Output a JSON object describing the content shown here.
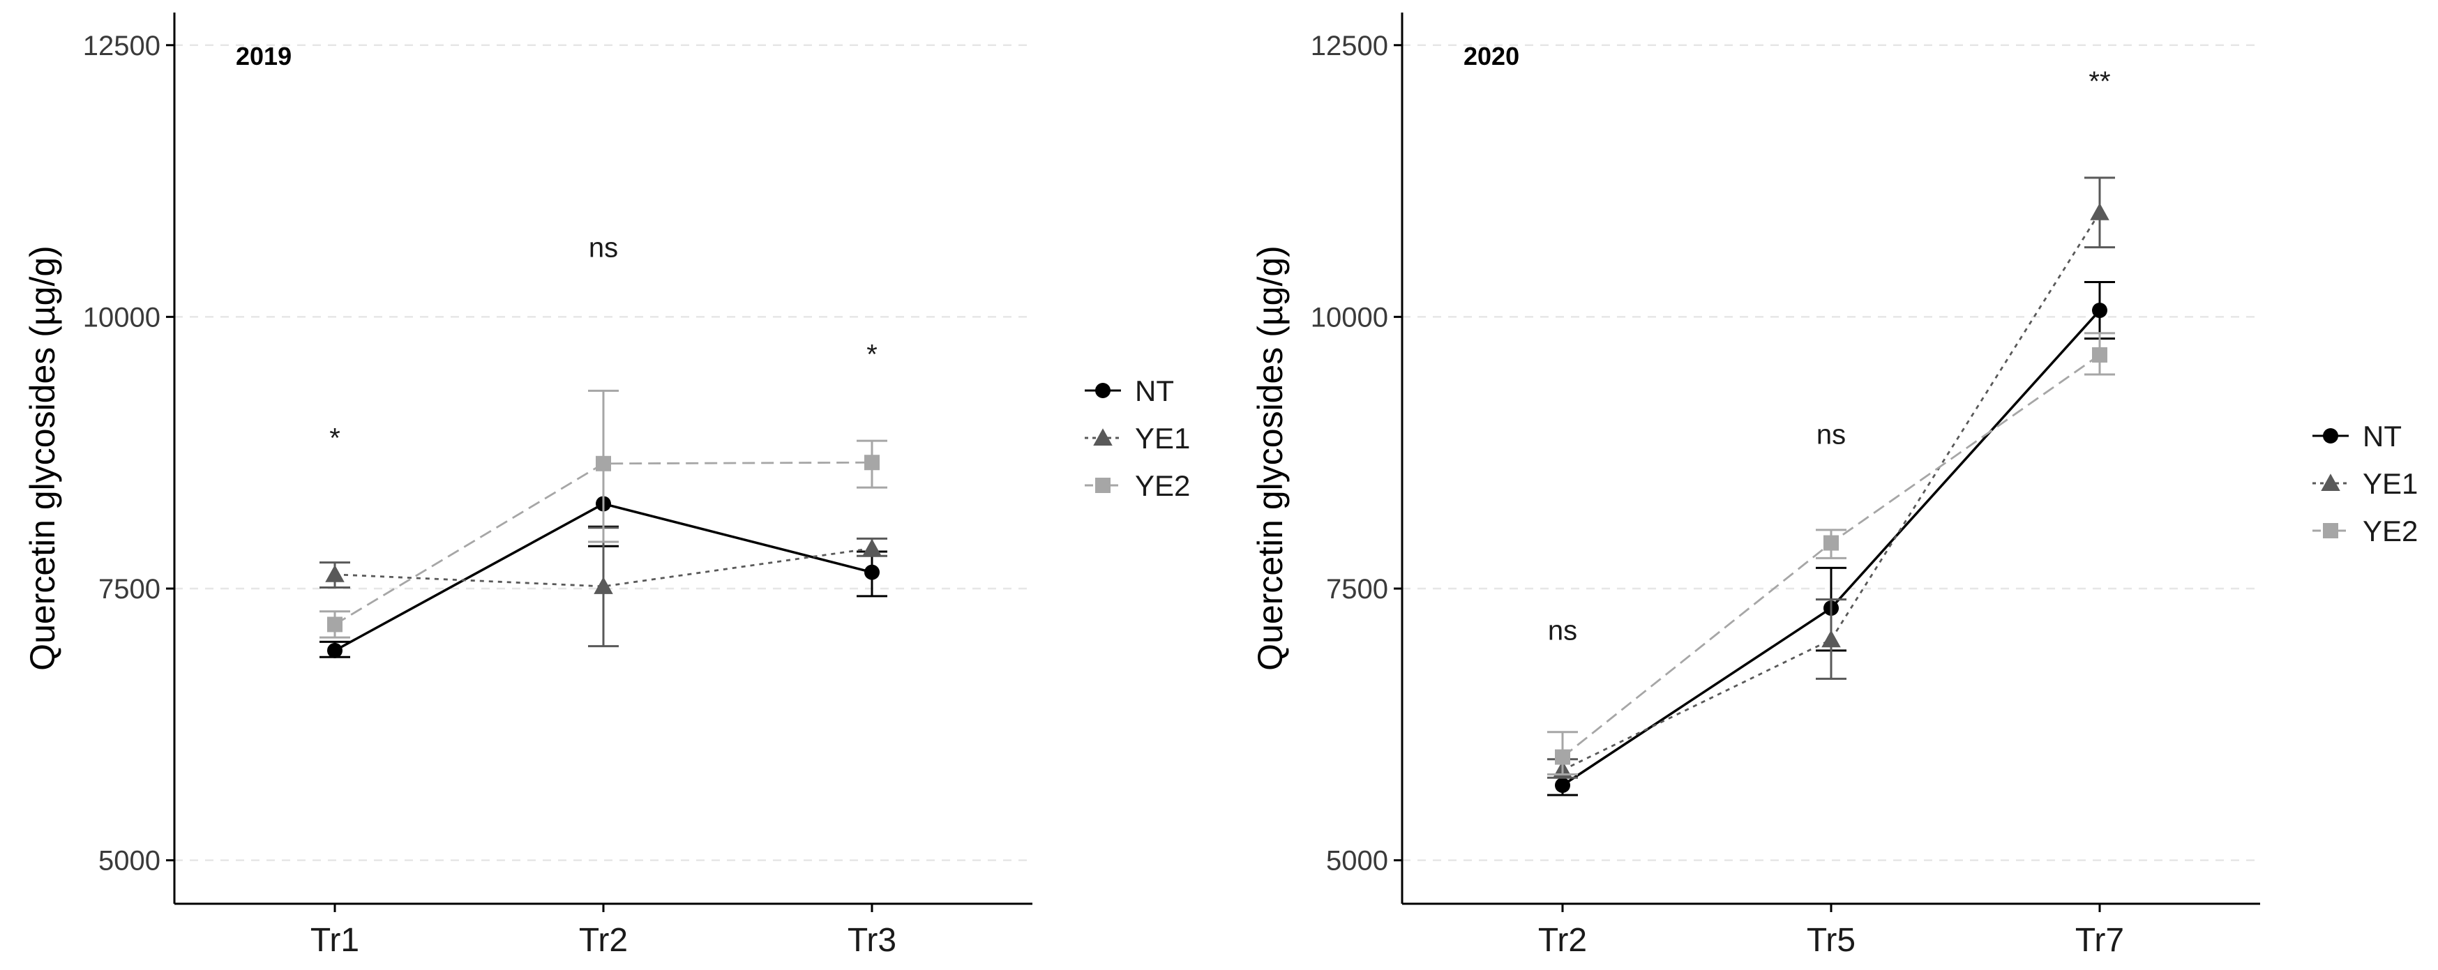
{
  "chart_data": [
    {
      "type": "line",
      "panel_label": "2019",
      "ylabel": "Quercetin glycosides (µg/g)",
      "xlabel": "",
      "categories": [
        "Tr1",
        "Tr2",
        "Tr3"
      ],
      "ylim": [
        4600,
        12800
      ],
      "yticks": [
        5000,
        7500,
        10000,
        12500
      ],
      "ytick_labels": [
        "5000",
        "7500",
        "10000",
        "12500"
      ],
      "grid": "horizontal dashed",
      "legend_position": "right",
      "annotations": [
        {
          "category": "Tr1",
          "text": "*",
          "y": 8800
        },
        {
          "category": "Tr2",
          "text": "ns",
          "y": 10550
        },
        {
          "category": "Tr3",
          "text": "*",
          "y": 9570
        }
      ],
      "series": [
        {
          "name": "NT",
          "values": [
            6930,
            8280,
            7650
          ],
          "err": [
            [
              6870,
              7010
            ],
            [
              7890,
              8070
            ],
            [
              7430,
              7840
            ]
          ],
          "color": "#000000",
          "marker": "circle",
          "dash": "solid"
        },
        {
          "name": "YE1",
          "values": [
            7630,
            7520,
            7870
          ],
          "err": [
            [
              7510,
              7740
            ],
            [
              6970,
              8060
            ],
            [
              7800,
              7960
            ]
          ],
          "color": "#595959",
          "marker": "triangle",
          "dash": "dotted"
        },
        {
          "name": "YE2",
          "values": [
            7170,
            8650,
            8660
          ],
          "err": [
            [
              7050,
              7290
            ],
            [
              7930,
              9320
            ],
            [
              8430,
              8860
            ]
          ],
          "color": "#a6a6a6",
          "marker": "square",
          "dash": "dashed"
        }
      ]
    },
    {
      "type": "line",
      "panel_label": "2020",
      "ylabel": "Quercetin glycosides (µg/g)",
      "xlabel": "",
      "categories": [
        "Tr2",
        "Tr5",
        "Tr7"
      ],
      "ylim": [
        4600,
        12800
      ],
      "yticks": [
        5000,
        7500,
        10000,
        12500
      ],
      "ytick_labels": [
        "5000",
        "7500",
        "10000",
        "12500"
      ],
      "grid": "horizontal dashed",
      "legend_position": "right",
      "annotations": [
        {
          "category": "Tr2",
          "text": "ns",
          "y": 7030
        },
        {
          "category": "Tr5",
          "text": "ns",
          "y": 8830
        },
        {
          "category": "Tr7",
          "text": "**",
          "y": 12080
        }
      ],
      "series": [
        {
          "name": "NT",
          "values": [
            5690,
            7320,
            10060
          ],
          "err": [
            [
              5600,
              5790
            ],
            [
              6930,
              7690
            ],
            [
              9800,
              10320
            ]
          ],
          "color": "#000000",
          "marker": "circle",
          "dash": "solid"
        },
        {
          "name": "YE1",
          "values": [
            5830,
            7030,
            10960
          ],
          "err": [
            [
              5760,
              5930
            ],
            [
              6670,
              7400
            ],
            [
              10640,
              11280
            ]
          ],
          "color": "#595959",
          "marker": "triangle",
          "dash": "dotted"
        },
        {
          "name": "YE2",
          "values": [
            5950,
            7920,
            9650
          ],
          "err": [
            [
              5790,
              6180
            ],
            [
              7780,
              8040
            ],
            [
              9470,
              9850
            ]
          ],
          "color": "#a6a6a6",
          "marker": "square",
          "dash": "dashed"
        }
      ]
    }
  ]
}
